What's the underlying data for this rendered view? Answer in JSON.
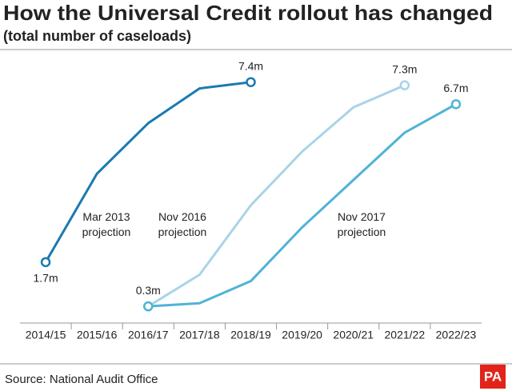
{
  "chart_data": {
    "type": "line",
    "title": "How the Universal Credit rollout has changed",
    "subtitle": "(total number of caseloads)",
    "source": "Source: National Audit Office",
    "logo": "PA",
    "categories": [
      "2014/15",
      "2015/16",
      "2016/17",
      "2017/18",
      "2018/19",
      "2019/20",
      "2020/21",
      "2021/22",
      "2022/23"
    ],
    "ylim": [
      0,
      8
    ],
    "series": [
      {
        "name": "Mar 2013 projection",
        "color": "#1a7ab0",
        "values": [
          1.7,
          4.5,
          6.1,
          7.2,
          7.4,
          null,
          null,
          null,
          null
        ],
        "value_labels": [
          "1.7m",
          null,
          null,
          null,
          "7.4m",
          null,
          null,
          null,
          null
        ]
      },
      {
        "name": "Nov 2016 projection",
        "color": "#a9d3e8",
        "values": [
          null,
          null,
          0.3,
          1.3,
          3.5,
          5.2,
          6.6,
          7.3,
          null
        ],
        "value_labels": [
          null,
          null,
          "0.3m",
          null,
          null,
          null,
          null,
          "7.3m",
          null
        ]
      },
      {
        "name": "Nov 2017 projection",
        "color": "#4fb3d6",
        "values": [
          null,
          null,
          0.3,
          0.4,
          1.1,
          2.8,
          4.3,
          5.8,
          6.7
        ],
        "value_labels": [
          null,
          null,
          null,
          null,
          null,
          null,
          null,
          null,
          "6.7m"
        ]
      }
    ]
  }
}
